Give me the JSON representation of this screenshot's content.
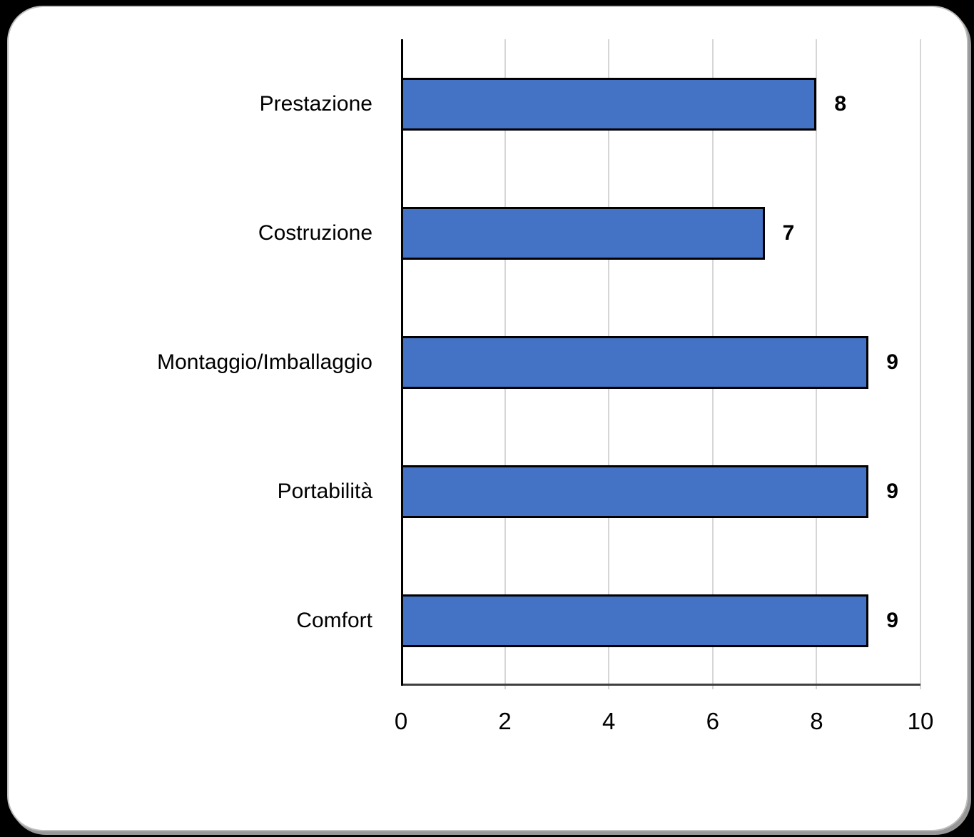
{
  "chart_data": {
    "type": "bar",
    "orientation": "horizontal",
    "title": "",
    "xlabel": "",
    "ylabel": "",
    "categories": [
      "Prestazione",
      "Costruzione",
      "Montaggio/Imballaggio",
      "Portabilità",
      "Comfort"
    ],
    "values": [
      8,
      7,
      9,
      9,
      9
    ],
    "data_labels": [
      "8",
      "7",
      "9",
      "9",
      "9"
    ],
    "x_ticks": [
      "0",
      "2",
      "4",
      "6",
      "8",
      "10"
    ],
    "x_tick_values": [
      0,
      2,
      4,
      6,
      8,
      10
    ],
    "xlim": [
      0,
      10
    ],
    "grid": true,
    "legend": false,
    "colors": {
      "bar_fill": "#4472C4",
      "bar_border": "#000000",
      "gridline": "#d6d6d6",
      "left_axis": "#000000",
      "bottom_axis": "#3f3f3f",
      "text": "#000000",
      "card_background": "#ffffff",
      "page_background": "#000000"
    }
  }
}
